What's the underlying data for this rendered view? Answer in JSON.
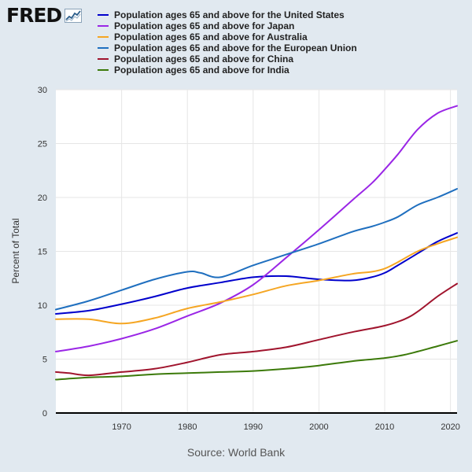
{
  "logo": {
    "text": "FRED"
  },
  "source": "Source: World Bank",
  "chart_data": {
    "type": "line",
    "ylabel": "Percent of Total",
    "xlabel": "",
    "ylim": [
      0,
      30
    ],
    "xlim": [
      1960,
      2021
    ],
    "yticks": [
      0,
      5,
      10,
      15,
      20,
      25,
      30
    ],
    "xticks": [
      1970,
      1980,
      1990,
      2000,
      2010,
      2020
    ],
    "grid": true,
    "legend": "top",
    "series": [
      {
        "name": "Population ages 65 and above for the United States",
        "color": "#0000cc",
        "x": [
          1960,
          1965,
          1970,
          1975,
          1980,
          1985,
          1990,
          1995,
          2000,
          2005,
          2008,
          2010,
          2012,
          2015,
          2018,
          2021
        ],
        "values": [
          9.2,
          9.5,
          10.1,
          10.8,
          11.6,
          12.1,
          12.6,
          12.7,
          12.4,
          12.3,
          12.6,
          13.0,
          13.7,
          14.8,
          15.9,
          16.7
        ]
      },
      {
        "name": "Population ages 65 and above for Japan",
        "color": "#9a26e6",
        "x": [
          1960,
          1965,
          1970,
          1975,
          1980,
          1985,
          1990,
          1995,
          2000,
          2005,
          2008,
          2010,
          2012,
          2015,
          2018,
          2021
        ],
        "values": [
          5.7,
          6.2,
          6.9,
          7.8,
          9.0,
          10.2,
          11.9,
          14.4,
          17.0,
          19.7,
          21.3,
          22.6,
          24.0,
          26.3,
          27.8,
          28.5
        ]
      },
      {
        "name": "Population ages 65 and above for Australia",
        "color": "#f5a623",
        "x": [
          1960,
          1965,
          1970,
          1975,
          1980,
          1985,
          1990,
          1995,
          2000,
          2005,
          2008,
          2010,
          2012,
          2015,
          2018,
          2021
        ],
        "values": [
          8.7,
          8.7,
          8.3,
          8.8,
          9.7,
          10.3,
          11.0,
          11.8,
          12.3,
          12.9,
          13.1,
          13.4,
          14.0,
          15.0,
          15.7,
          16.3
        ]
      },
      {
        "name": "Population ages 65 and above for the European Union",
        "color": "#1f6fbf",
        "x": [
          1960,
          1965,
          1970,
          1975,
          1980,
          1982,
          1985,
          1990,
          1995,
          2000,
          2005,
          2008,
          2010,
          2012,
          2015,
          2018,
          2021
        ],
        "values": [
          9.6,
          10.4,
          11.4,
          12.4,
          13.1,
          13.0,
          12.6,
          13.7,
          14.7,
          15.7,
          16.8,
          17.3,
          17.7,
          18.2,
          19.3,
          20.0,
          20.8
        ]
      },
      {
        "name": "Population ages 65 and above for China",
        "color": "#a0142d",
        "x": [
          1960,
          1962,
          1965,
          1970,
          1975,
          1980,
          1985,
          1990,
          1995,
          2000,
          2005,
          2010,
          2013,
          2015,
          2018,
          2021
        ],
        "values": [
          3.8,
          3.7,
          3.5,
          3.8,
          4.1,
          4.7,
          5.4,
          5.7,
          6.1,
          6.8,
          7.5,
          8.1,
          8.7,
          9.4,
          10.8,
          12.0
        ]
      },
      {
        "name": "Population ages 65 and above for India",
        "color": "#3c7a0a",
        "x": [
          1960,
          1965,
          1970,
          1975,
          1980,
          1985,
          1990,
          1995,
          2000,
          2005,
          2010,
          2013,
          2015,
          2018,
          2021
        ],
        "values": [
          3.1,
          3.3,
          3.4,
          3.6,
          3.7,
          3.8,
          3.9,
          4.1,
          4.4,
          4.8,
          5.1,
          5.4,
          5.7,
          6.2,
          6.7
        ]
      }
    ]
  }
}
